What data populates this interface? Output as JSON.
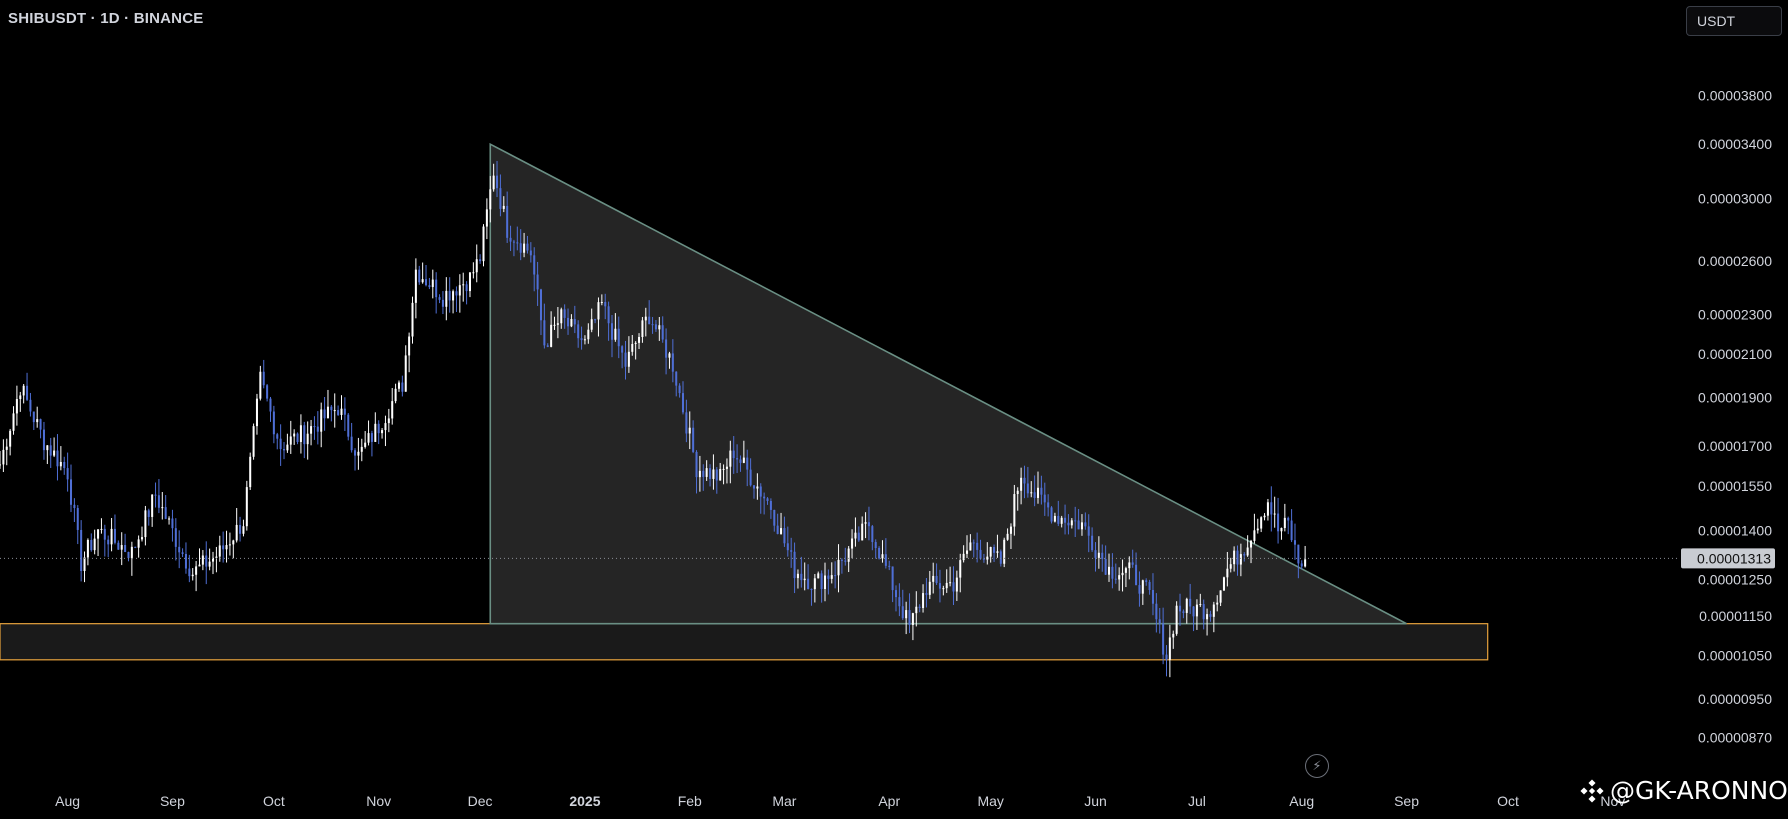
{
  "header": {
    "symbol_title": "SHIBUSDT · 1D · BINANCE",
    "currency_label": "USDT"
  },
  "watermark": {
    "text": "@GK-ARONNO",
    "icon": "binance-logo-icon"
  },
  "lightning_icon": "lightning-icon",
  "colors": {
    "background": "#000000",
    "candle_up": "#ffffff",
    "candle_down": "#4f6fd6",
    "triangle_fill": "#2b2b2b",
    "triangle_stroke": "#6a8f84",
    "support_zone_border": "#e8a33d",
    "support_zone_fill": "#1a1a1a",
    "last_price_label_bg": "#c9ccd2",
    "axis_text": "#d1d4dc"
  },
  "chart_data": {
    "type": "candlestick",
    "scale": "log",
    "grid": false,
    "symbol": "SHIBUSDT",
    "interval": "1D",
    "exchange": "BINANCE",
    "y_ticks": [
      "0.00003800",
      "0.00003400",
      "0.00003000",
      "0.00002600",
      "0.00002300",
      "0.00002100",
      "0.00001900",
      "0.00001700",
      "0.00001550",
      "0.00001400",
      "0.00001250",
      "0.00001150",
      "0.00001050",
      "0.00000950",
      "0.00000870"
    ],
    "x_ticks": [
      "Aug",
      "Sep",
      "Oct",
      "Nov",
      "Dec",
      "2025",
      "Feb",
      "Mar",
      "Apr",
      "May",
      "Jun",
      "Jul",
      "Aug",
      "Sep",
      "Oct",
      "Nov"
    ],
    "x_range": [
      "2024-07-12",
      "2025-11-12"
    ],
    "ylim": [
      8.3e-06,
      4.05e-05
    ],
    "last_price": "0.00001313",
    "anchors": [
      [
        "2024-07-12",
        1.63e-05
      ],
      [
        "2024-07-18",
        1.95e-05
      ],
      [
        "2024-07-25",
        1.72e-05
      ],
      [
        "2024-08-01",
        1.6e-05
      ],
      [
        "2024-08-05",
        1.3e-05
      ],
      [
        "2024-08-10",
        1.4e-05
      ],
      [
        "2024-08-20",
        1.33e-05
      ],
      [
        "2024-08-27",
        1.52e-05
      ],
      [
        "2024-09-03",
        1.35e-05
      ],
      [
        "2024-09-07",
        1.27e-05
      ],
      [
        "2024-09-15",
        1.33e-05
      ],
      [
        "2024-09-22",
        1.43e-05
      ],
      [
        "2024-09-27",
        1.98e-05
      ],
      [
        "2024-10-03",
        1.7e-05
      ],
      [
        "2024-10-10",
        1.75e-05
      ],
      [
        "2024-10-20",
        1.86e-05
      ],
      [
        "2024-10-26",
        1.66e-05
      ],
      [
        "2024-11-01",
        1.78e-05
      ],
      [
        "2024-11-08",
        1.96e-05
      ],
      [
        "2024-11-12",
        2.55e-05
      ],
      [
        "2024-11-20",
        2.4e-05
      ],
      [
        "2024-11-28",
        2.5e-05
      ],
      [
        "2024-12-01",
        2.62e-05
      ],
      [
        "2024-12-05",
        3.2e-05
      ],
      [
        "2024-12-09",
        2.8e-05
      ],
      [
        "2024-12-16",
        2.65e-05
      ],
      [
        "2024-12-20",
        2.15e-05
      ],
      [
        "2024-12-25",
        2.28e-05
      ],
      [
        "2025-01-01",
        2.15e-05
      ],
      [
        "2025-01-06",
        2.35e-05
      ],
      [
        "2025-01-13",
        2.05e-05
      ],
      [
        "2025-01-20",
        2.3e-05
      ],
      [
        "2025-01-27",
        2.05e-05
      ],
      [
        "2025-02-03",
        1.62e-05
      ],
      [
        "2025-02-10",
        1.58e-05
      ],
      [
        "2025-02-14",
        1.68e-05
      ],
      [
        "2025-02-25",
        1.48e-05
      ],
      [
        "2025-03-04",
        1.28e-05
      ],
      [
        "2025-03-10",
        1.24e-05
      ],
      [
        "2025-03-16",
        1.28e-05
      ],
      [
        "2025-03-26",
        1.42e-05
      ],
      [
        "2025-04-03",
        1.21e-05
      ],
      [
        "2025-04-07",
        1.12e-05
      ],
      [
        "2025-04-12",
        1.23e-05
      ],
      [
        "2025-04-20",
        1.24e-05
      ],
      [
        "2025-04-25",
        1.36e-05
      ],
      [
        "2025-05-04",
        1.3e-05
      ],
      [
        "2025-05-10",
        1.6e-05
      ],
      [
        "2025-05-14",
        1.52e-05
      ],
      [
        "2025-05-20",
        1.45e-05
      ],
      [
        "2025-05-28",
        1.42e-05
      ],
      [
        "2025-06-05",
        1.28e-05
      ],
      [
        "2025-06-12",
        1.27e-05
      ],
      [
        "2025-06-17",
        1.2e-05
      ],
      [
        "2025-06-22",
        1.05e-05
      ],
      [
        "2025-06-25",
        1.17e-05
      ],
      [
        "2025-07-05",
        1.17e-05
      ],
      [
        "2025-07-10",
        1.28e-05
      ],
      [
        "2025-07-15",
        1.35e-05
      ],
      [
        "2025-07-22",
        1.5e-05
      ],
      [
        "2025-07-25",
        1.4e-05
      ],
      [
        "2025-07-28",
        1.42e-05
      ],
      [
        "2025-07-31",
        1.3e-05
      ],
      [
        "2025-08-02",
        1.31e-05
      ]
    ],
    "drawings": {
      "triangle": {
        "apex": [
          "2024-12-04",
          3.4e-05
        ],
        "base_left": [
          "2024-12-04",
          1.13e-05
        ],
        "base_right": [
          "2025-09-01",
          1.13e-05
        ]
      },
      "support_zone": {
        "from": "2024-07-12",
        "to": "2025-09-25",
        "top": 1.13e-05,
        "bottom": 1.04e-05
      }
    }
  }
}
